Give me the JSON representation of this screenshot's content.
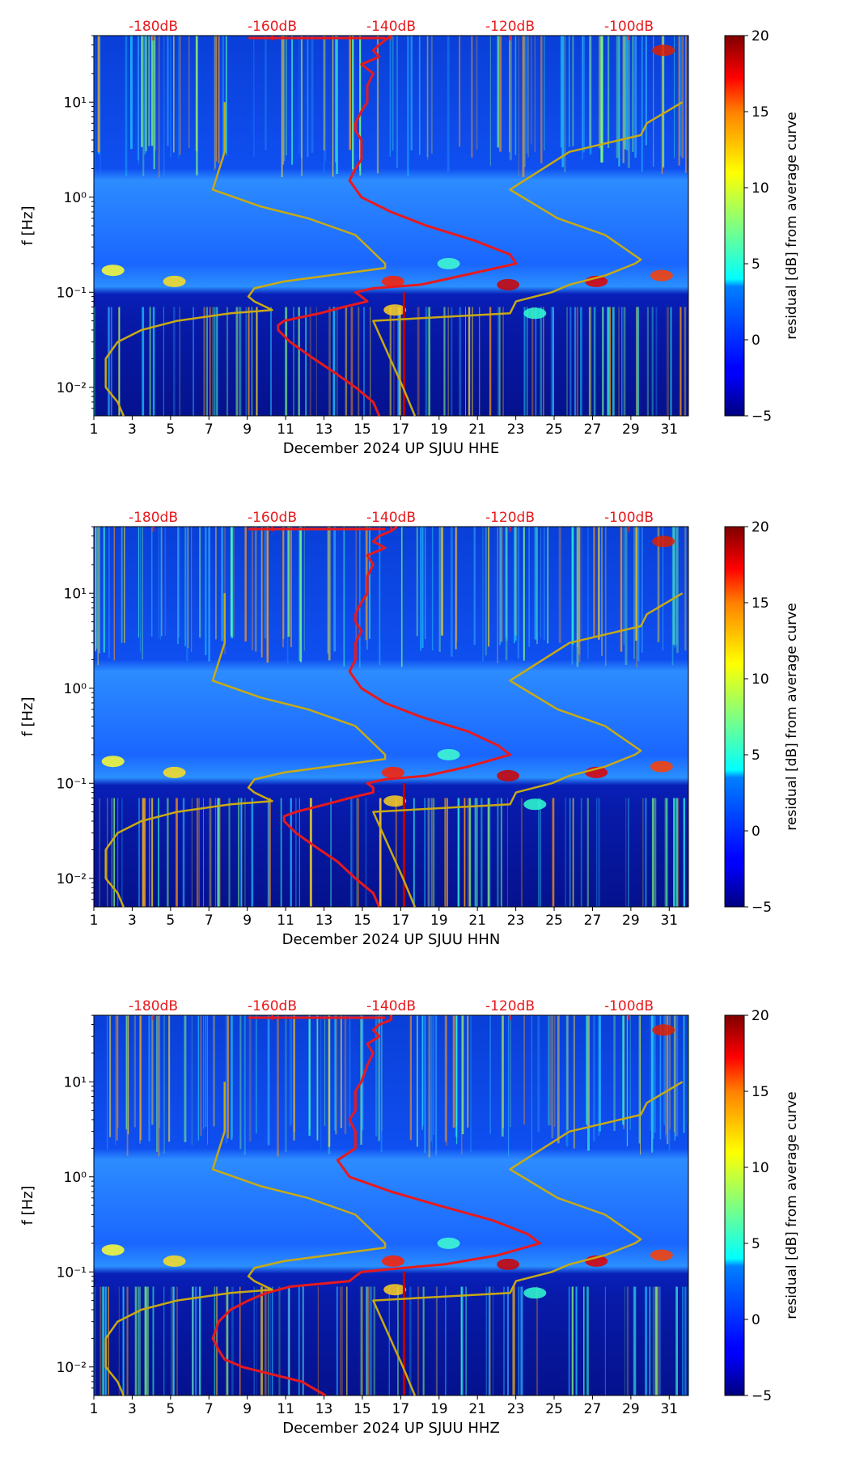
{
  "figure": {
    "description_axis": "frequency spectrogram residuals, December 2024, station UP SJUU"
  },
  "chart_data": [
    {
      "type": "heatmap",
      "channel": "HHE",
      "xlabel": "December 2024 UP SJUU  HHE",
      "ylabel": "f [Hz]",
      "xlim": [
        1,
        32
      ],
      "ylim_log10": [
        -2.3,
        1.7
      ],
      "x_ticks": [
        "1",
        "3",
        "5",
        "7",
        "9",
        "11",
        "13",
        "15",
        "17",
        "19",
        "21",
        "23",
        "25",
        "27",
        "29",
        "31"
      ],
      "y_ticks": [
        {
          "value": 0.01,
          "label": "10⁻²"
        },
        {
          "value": 0.1,
          "label": "10⁻¹"
        },
        {
          "value": 1,
          "label": "10⁰"
        },
        {
          "value": 10,
          "label": "10¹"
        }
      ],
      "top_ticks": [
        "-180dB",
        "-160dB",
        "-140dB",
        "-120dB",
        "-100dB"
      ],
      "top_axis_range_dB": [
        -190,
        -90
      ],
      "colorbar": {
        "label": "residual [dB] from average curve",
        "min": -5,
        "max": 20,
        "ticks": [
          "−5",
          "0",
          "5",
          "10",
          "15",
          "20"
        ]
      },
      "series": [
        {
          "name": "average PSD curve",
          "color": "#e8191c",
          "freq": [
            50,
            45,
            40,
            35,
            30,
            25,
            20,
            15,
            10,
            8,
            6,
            5,
            4,
            3,
            2.5,
            2,
            1.5,
            1,
            0.7,
            0.5,
            0.35,
            0.25,
            0.2,
            0.15,
            0.12,
            0.11,
            0.1,
            0.09,
            0.08,
            0.07,
            0.06,
            0.05,
            0.045,
            0.04,
            0.03,
            0.02,
            0.015,
            0.01,
            0.007,
            0.005
          ],
          "db": [
            -140,
            -141,
            -142,
            -143,
            -142,
            -145,
            -143,
            -144,
            -144,
            -145,
            -146,
            -146,
            -145,
            -145,
            -145,
            -146,
            -147,
            -145,
            -140,
            -134,
            -126,
            -120,
            -119,
            -128,
            -135,
            -143,
            -146,
            -145,
            -144,
            -148,
            -152,
            -158,
            -159,
            -159,
            -157,
            -153,
            -150,
            -146,
            -143,
            -142
          ]
        },
        {
          "name": "low noise model",
          "color": "#c8aa14",
          "freq": [
            10,
            5,
            3,
            1.2,
            0.8,
            0.6,
            0.4,
            0.2,
            0.18,
            0.13,
            0.11,
            0.09,
            0.08,
            0.065,
            0.06,
            0.05,
            0.04,
            0.03,
            0.02,
            0.01,
            0.007,
            0.005
          ],
          "db": [
            -168,
            -168,
            -168,
            -170,
            -162,
            -154,
            -146,
            -141,
            -141,
            -158,
            -163,
            -164,
            -163,
            -160,
            -167,
            -176,
            -182,
            -186,
            -188,
            -188,
            -186,
            -185
          ]
        },
        {
          "name": "high noise model",
          "color": "#c8aa14",
          "freq": [
            10,
            6,
            4.5,
            3,
            1.2,
            0.6,
            0.4,
            0.22,
            0.2,
            0.15,
            0.12,
            0.1,
            0.08,
            0.06,
            0.05,
            0.01,
            0.005
          ],
          "db": [
            -91,
            -97,
            -98,
            -110,
            -120,
            -112,
            -104,
            -98,
            -99,
            -104,
            -110,
            -113,
            -119,
            -120,
            -143,
            -138,
            -136
          ]
        }
      ]
    },
    {
      "type": "heatmap",
      "channel": "HHN",
      "xlabel": "December 2024 UP SJUU  HHN",
      "ylabel": "f [Hz]",
      "xlim": [
        1,
        32
      ],
      "ylim_log10": [
        -2.3,
        1.7
      ],
      "x_ticks": [
        "1",
        "3",
        "5",
        "7",
        "9",
        "11",
        "13",
        "15",
        "17",
        "19",
        "21",
        "23",
        "25",
        "27",
        "29",
        "31"
      ],
      "y_ticks": [
        {
          "value": 0.01,
          "label": "10⁻²"
        },
        {
          "value": 0.1,
          "label": "10⁻¹"
        },
        {
          "value": 1,
          "label": "10⁰"
        },
        {
          "value": 10,
          "label": "10¹"
        }
      ],
      "top_ticks": [
        "-180dB",
        "-160dB",
        "-140dB",
        "-120dB",
        "-100dB"
      ],
      "top_axis_range_dB": [
        -190,
        -90
      ],
      "colorbar": {
        "label": "residual [dB] from average curve",
        "min": -5,
        "max": 20,
        "ticks": [
          "−5",
          "0",
          "5",
          "10",
          "15",
          "20"
        ]
      },
      "series": [
        {
          "name": "average PSD curve",
          "color": "#e8191c",
          "freq": [
            50,
            45,
            40,
            35,
            30,
            25,
            20,
            15,
            10,
            8,
            6,
            5,
            4,
            3,
            2.5,
            2,
            1.5,
            1,
            0.7,
            0.5,
            0.35,
            0.25,
            0.2,
            0.15,
            0.12,
            0.11,
            0.1,
            0.09,
            0.08,
            0.07,
            0.06,
            0.05,
            0.045,
            0.04,
            0.03,
            0.02,
            0.015,
            0.01,
            0.007,
            0.005
          ],
          "db": [
            -139,
            -140,
            -142,
            -143,
            -141,
            -144,
            -143,
            -144,
            -144,
            -145,
            -146,
            -146,
            -145,
            -146,
            -146,
            -146,
            -147,
            -145,
            -141,
            -135,
            -127,
            -122,
            -120,
            -127,
            -134,
            -141,
            -144,
            -143,
            -143,
            -147,
            -151,
            -156,
            -158,
            -158,
            -156,
            -152,
            -149,
            -146,
            -143,
            -142
          ]
        },
        {
          "name": "low noise model",
          "color": "#c8aa14",
          "freq": [
            10,
            5,
            3,
            1.2,
            0.8,
            0.6,
            0.4,
            0.2,
            0.18,
            0.13,
            0.11,
            0.09,
            0.08,
            0.065,
            0.06,
            0.05,
            0.04,
            0.03,
            0.02,
            0.01,
            0.007,
            0.005
          ],
          "db": [
            -168,
            -168,
            -168,
            -170,
            -162,
            -154,
            -146,
            -141,
            -141,
            -158,
            -163,
            -164,
            -163,
            -160,
            -167,
            -176,
            -182,
            -186,
            -188,
            -188,
            -186,
            -185
          ]
        },
        {
          "name": "high noise model",
          "color": "#c8aa14",
          "freq": [
            10,
            6,
            4.5,
            3,
            1.2,
            0.6,
            0.4,
            0.22,
            0.2,
            0.15,
            0.12,
            0.1,
            0.08,
            0.06,
            0.05,
            0.01,
            0.005
          ],
          "db": [
            -91,
            -97,
            -98,
            -110,
            -120,
            -112,
            -104,
            -98,
            -99,
            -104,
            -110,
            -113,
            -119,
            -120,
            -143,
            -138,
            -136
          ]
        }
      ]
    },
    {
      "type": "heatmap",
      "channel": "HHZ",
      "xlabel": "December 2024 UP SJUU  HHZ",
      "ylabel": "f [Hz]",
      "xlim": [
        1,
        32
      ],
      "ylim_log10": [
        -2.3,
        1.7
      ],
      "x_ticks": [
        "1",
        "3",
        "5",
        "7",
        "9",
        "11",
        "13",
        "15",
        "17",
        "19",
        "21",
        "23",
        "25",
        "27",
        "29",
        "31"
      ],
      "y_ticks": [
        {
          "value": 0.01,
          "label": "10⁻²"
        },
        {
          "value": 0.1,
          "label": "10⁻¹"
        },
        {
          "value": 1,
          "label": "10⁰"
        },
        {
          "value": 10,
          "label": "10¹"
        }
      ],
      "top_ticks": [
        "-180dB",
        "-160dB",
        "-140dB",
        "-120dB",
        "-100dB"
      ],
      "top_axis_range_dB": [
        -190,
        -90
      ],
      "colorbar": {
        "label": "residual [dB] from average curve",
        "min": -5,
        "max": 20,
        "ticks": [
          "−5",
          "0",
          "5",
          "10",
          "15",
          "20"
        ]
      },
      "series": [
        {
          "name": "average PSD curve",
          "color": "#e8191c",
          "freq": [
            50,
            45,
            40,
            35,
            30,
            25,
            20,
            15,
            10,
            8,
            6,
            5,
            4,
            3,
            2.5,
            2,
            1.5,
            1,
            0.7,
            0.5,
            0.35,
            0.25,
            0.2,
            0.15,
            0.12,
            0.11,
            0.1,
            0.09,
            0.08,
            0.07,
            0.06,
            0.05,
            0.04,
            0.03,
            0.02,
            0.015,
            0.012,
            0.01,
            0.007,
            0.005
          ],
          "db": [
            -140,
            -140,
            -142,
            -143,
            -142,
            -144,
            -143,
            -144,
            -145,
            -146,
            -146,
            -146,
            -147,
            -146,
            -146,
            -146,
            -149,
            -147,
            -140,
            -132,
            -123,
            -117,
            -115,
            -122,
            -131,
            -138,
            -145,
            -146,
            -147,
            -157,
            -161,
            -164,
            -167,
            -169,
            -170,
            -169,
            -168,
            -165,
            -155,
            -151
          ]
        },
        {
          "name": "low noise model",
          "color": "#c8aa14",
          "freq": [
            10,
            5,
            3,
            1.2,
            0.8,
            0.6,
            0.4,
            0.2,
            0.18,
            0.13,
            0.11,
            0.09,
            0.08,
            0.065,
            0.06,
            0.05,
            0.04,
            0.03,
            0.02,
            0.01,
            0.007,
            0.005
          ],
          "db": [
            -168,
            -168,
            -168,
            -170,
            -162,
            -154,
            -146,
            -141,
            -141,
            -158,
            -163,
            -164,
            -163,
            -160,
            -167,
            -176,
            -182,
            -186,
            -188,
            -188,
            -186,
            -185
          ]
        },
        {
          "name": "high noise model",
          "color": "#c8aa14",
          "freq": [
            10,
            6,
            4.5,
            3,
            1.2,
            0.6,
            0.4,
            0.22,
            0.2,
            0.15,
            0.12,
            0.1,
            0.08,
            0.06,
            0.05,
            0.01,
            0.005
          ],
          "db": [
            -91,
            -97,
            -98,
            -110,
            -120,
            -112,
            -104,
            -98,
            -99,
            -104,
            -110,
            -113,
            -119,
            -120,
            -143,
            -138,
            -136
          ]
        }
      ]
    }
  ]
}
